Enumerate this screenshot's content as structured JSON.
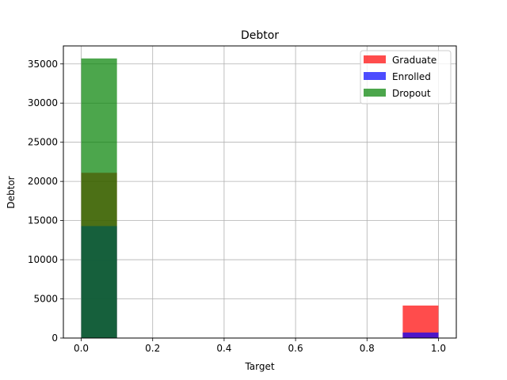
{
  "chart_data": {
    "type": "bar",
    "subtype": "overlaid histogram",
    "title": "Debtor",
    "xlabel": "Target",
    "ylabel": "Debtor",
    "xlim": [
      -0.05,
      1.05
    ],
    "ylim": [
      0,
      37300
    ],
    "xticks": [
      0.0,
      0.2,
      0.4,
      0.6,
      0.8,
      1.0
    ],
    "xtick_labels": [
      "0.0",
      "0.2",
      "0.4",
      "0.6",
      "0.8",
      "1.0"
    ],
    "yticks": [
      0,
      5000,
      10000,
      15000,
      20000,
      25000,
      30000,
      35000
    ],
    "ytick_labels": [
      "0",
      "5000",
      "10000",
      "15000",
      "20000",
      "25000",
      "30000",
      "35000"
    ],
    "grid": true,
    "legend_position": "top-right",
    "bin_edges": [
      [
        0.0,
        0.1
      ],
      [
        0.9,
        1.0
      ]
    ],
    "series": [
      {
        "name": "Graduate",
        "color": "#ff0000",
        "alpha": 0.7,
        "values": [
          21100,
          4150
        ]
      },
      {
        "name": "Enrolled",
        "color": "#0000ff",
        "alpha": 0.7,
        "values": [
          14300,
          700
        ]
      },
      {
        "name": "Dropout",
        "color": "#008000",
        "alpha": 0.7,
        "values": [
          35700,
          0
        ]
      }
    ]
  }
}
